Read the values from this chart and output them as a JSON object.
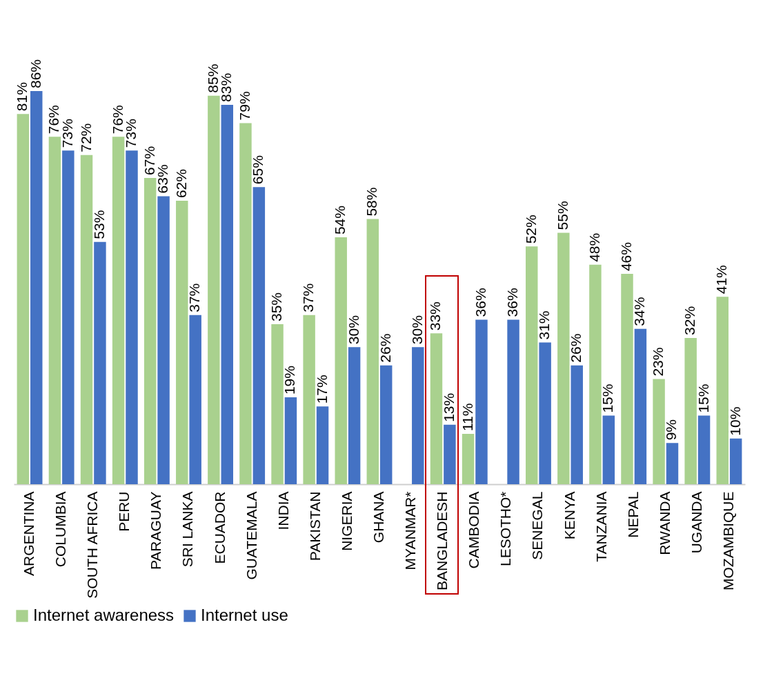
{
  "chart_data": {
    "type": "bar",
    "categories": [
      "ARGENTINA",
      "COLUMBIA",
      "SOUTH AFRICA",
      "PERU",
      "PARAGUAY",
      "SRI LANKA",
      "ECUADOR",
      "GUATEMALA",
      "INDIA",
      "PAKISTAN",
      "NIGERIA",
      "GHANA",
      "MYANMAR*",
      "BANGLADESH",
      "CAMBODIA",
      "LESOTHO*",
      "SENEGAL",
      "KENYA",
      "TANZANIA",
      "NEPAL",
      "RWANDA",
      "UGANDA",
      "MOZAMBIQUE"
    ],
    "series": [
      {
        "name": "Internet awareness",
        "color": "#a9d18e",
        "values": [
          81,
          76,
          72,
          76,
          67,
          62,
          85,
          79,
          35,
          37,
          54,
          58,
          null,
          33,
          11,
          null,
          52,
          55,
          48,
          46,
          23,
          32,
          41
        ],
        "value_labels": [
          "81%",
          "76%",
          "72%",
          "76%",
          "67%",
          "62%",
          "85%",
          "79%",
          "35%",
          "37%",
          "54%",
          "58%",
          null,
          "33%",
          "11%",
          null,
          "52%",
          "55%",
          "48%",
          "46%",
          "23%",
          "32%",
          "41%"
        ]
      },
      {
        "name": "Internet use",
        "color": "#4472c4",
        "values": [
          86,
          73,
          53,
          73,
          63,
          37,
          83,
          65,
          19,
          17,
          30,
          26,
          30,
          13,
          36,
          36,
          31,
          26,
          15,
          34,
          9,
          15,
          10
        ],
        "value_labels": [
          "86%",
          "73%",
          "53%",
          "73%",
          "63%",
          "37%",
          "83%",
          "65%",
          "19%",
          "17%",
          "30%",
          "26%",
          "30%",
          "13%",
          "36%",
          "36%",
          "31%",
          "26%",
          "15%",
          "34%",
          "9%",
          "15%",
          "10%"
        ]
      }
    ],
    "legend": "bottom"
  }
}
